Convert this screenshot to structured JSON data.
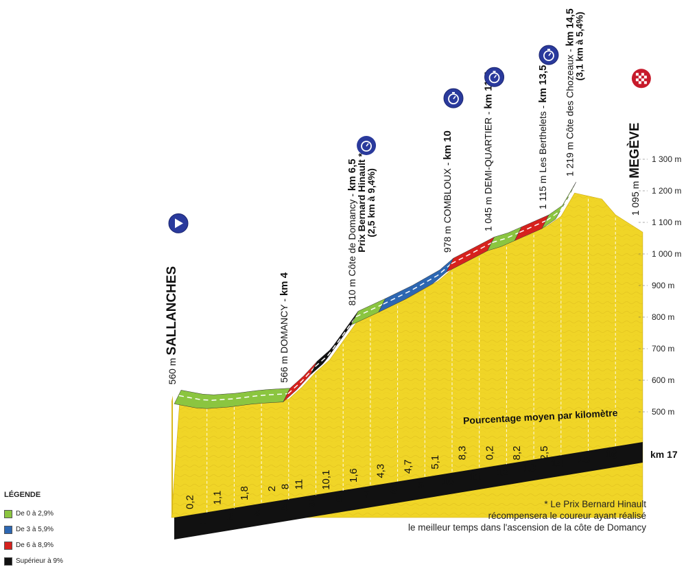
{
  "chart_data": {
    "type": "area",
    "title": "",
    "x_unit": "km",
    "xlim": [
      0,
      17
    ],
    "ylim": [
      400,
      1300
    ],
    "y_ticks": [
      "500 m",
      "600 m",
      "700 m",
      "800 m",
      "900 m",
      "1 000 m",
      "1 100 m",
      "1 200 m",
      "1 300 m"
    ],
    "y_tick_values": [
      500,
      600,
      700,
      800,
      900,
      1000,
      1100,
      1200,
      1300
    ],
    "x_ticks": [
      "1",
      "2",
      "3",
      "4",
      "5",
      "6",
      "7",
      "8",
      "9",
      "10",
      "11",
      "12",
      "13",
      "14",
      "15",
      "16"
    ],
    "x_end_label": "km 17",
    "profile": [
      {
        "km": 0,
        "alt": 560
      },
      {
        "km": 1,
        "alt": 544
      },
      {
        "km": 2,
        "alt": 550
      },
      {
        "km": 3,
        "alt": 561
      },
      {
        "km": 4,
        "alt": 566
      },
      {
        "km": 4.5,
        "alt": 605
      },
      {
        "km": 5,
        "alt": 652
      },
      {
        "km": 5.5,
        "alt": 690
      },
      {
        "km": 6.5,
        "alt": 810
      },
      {
        "km": 7.5,
        "alt": 850
      },
      {
        "km": 8.5,
        "alt": 892
      },
      {
        "km": 9.5,
        "alt": 941
      },
      {
        "km": 10,
        "alt": 978
      },
      {
        "km": 10.5,
        "alt": 1000
      },
      {
        "km": 11.5,
        "alt": 1045
      },
      {
        "km": 12,
        "alt": 1058
      },
      {
        "km": 13.5,
        "alt": 1115
      },
      {
        "km": 14,
        "alt": 1145
      },
      {
        "km": 14.5,
        "alt": 1219
      },
      {
        "km": 15.5,
        "alt": 1200
      },
      {
        "km": 16,
        "alt": 1150
      },
      {
        "km": 17,
        "alt": 1095
      }
    ],
    "segments": [
      {
        "from": 0,
        "to": 4,
        "cat": "green"
      },
      {
        "from": 4,
        "to": 5,
        "cat": "red"
      },
      {
        "from": 5,
        "to": 6.5,
        "cat": "black"
      },
      {
        "from": 6.5,
        "to": 7.5,
        "cat": "green"
      },
      {
        "from": 7.5,
        "to": 10,
        "cat": "blue"
      },
      {
        "from": 10,
        "to": 11.5,
        "cat": "red"
      },
      {
        "from": 11.5,
        "to": 12.5,
        "cat": "green"
      },
      {
        "from": 12.5,
        "to": 13.5,
        "cat": "red"
      },
      {
        "from": 13.5,
        "to": 14.5,
        "cat": "green"
      }
    ],
    "colors": {
      "green": "#8bc540",
      "blue": "#2d67b2",
      "red": "#d6221e",
      "black": "#111111",
      "terrain": "#f0d527"
    },
    "km_percentages": {
      "caption": "Pourcentage moyen par kilomètre",
      "lower": [
        {
          "km": 1,
          "value": "0,2"
        },
        {
          "km": 2,
          "value": "1,1"
        },
        {
          "km": 3,
          "value": "1,8"
        },
        {
          "km": 4,
          "value": "2"
        },
        {
          "km": 4.5,
          "value": "8"
        },
        {
          "km": 5,
          "value": "11"
        },
        {
          "km": 6,
          "value": "10,1"
        },
        {
          "km": 7,
          "value": "1,6"
        },
        {
          "km": 8,
          "value": "4,3"
        },
        {
          "km": 9,
          "value": "4,7"
        },
        {
          "km": 10,
          "value": "5,1"
        }
      ],
      "upper": [
        {
          "km": 11,
          "value": "8,3"
        },
        {
          "km": 12,
          "value": "0,2"
        },
        {
          "km": 13,
          "value": "8,2"
        },
        {
          "km": 14,
          "value": "2,5"
        }
      ]
    },
    "waypoints": [
      {
        "km": 0,
        "alt": "560 m",
        "name": "SALLANCHES",
        "km_label": "",
        "sub": "",
        "icon": "start",
        "bold_name": true
      },
      {
        "km": 4,
        "alt": "566 m",
        "name": "DOMANCY",
        "km_label": "km 4",
        "sub": "",
        "icon": "",
        "bold_name": false
      },
      {
        "km": 6.5,
        "alt": "810 m",
        "name": "Côte de Domancy",
        "km_label": "km 6,5",
        "sub": "Prix Bernard Hinault *",
        "sub2": "(2,5 km à 9,4%)",
        "icon": "",
        "bold_name": false
      },
      {
        "km": 10,
        "alt": "978 m",
        "name": "COMBLOUX",
        "km_label": "km 10",
        "sub": "",
        "icon": "clock",
        "bold_name": false
      },
      {
        "km": 11.5,
        "alt": "1 045 m",
        "name": "DEMI-QUARTIER",
        "km_label": "km 11,5",
        "sub": "",
        "icon": "clock",
        "bold_name": false
      },
      {
        "km": 13.5,
        "alt": "1 115 m",
        "name": "Les Berthelets",
        "km_label": "km 13,5",
        "sub": "",
        "icon": "clock",
        "bold_name": false
      },
      {
        "km": 14.5,
        "alt": "1 219 m",
        "name": "Côte des Chozeaux",
        "km_label": "km 14,5",
        "sub": "(3,1 km à 5,4%)",
        "icon": "",
        "bold_name": false
      },
      {
        "km": 17,
        "alt": "1 095 m",
        "name": "MEGÈVE",
        "km_label": "",
        "sub": "",
        "icon": "finish",
        "bold_name": true
      }
    ]
  },
  "legend": {
    "title": "LÉGENDE",
    "items": [
      {
        "label": "De 0 à 2,9%",
        "color": "#8bc540"
      },
      {
        "label": "De 3 à 5,9%",
        "color": "#2d67b2"
      },
      {
        "label": "De 6 à 8,9%",
        "color": "#d6221e"
      },
      {
        "label": "Supérieur à 9%",
        "color": "#111111"
      }
    ]
  },
  "footnote": {
    "line1": "* Le Prix Bernard Hinault",
    "line2": "récompensera le coureur ayant réalisé",
    "line3": "le meilleur temps dans l'ascension de la côte de Domancy"
  }
}
